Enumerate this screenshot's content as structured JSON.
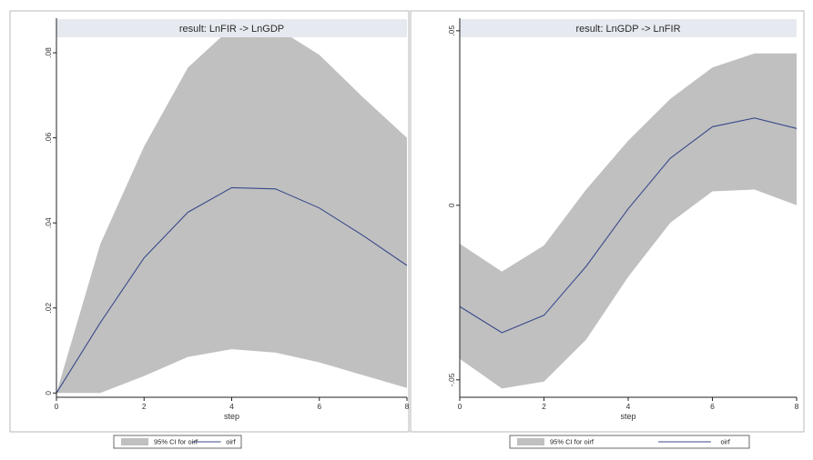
{
  "chart_data": [
    {
      "type": "area",
      "title": "result: LnFIR -> LnGDP",
      "xlabel": "step",
      "ylabel": "",
      "x": [
        0,
        1,
        2,
        3,
        4,
        5,
        6,
        7,
        8
      ],
      "xticks": [
        "0",
        "2",
        "4",
        "6",
        "8"
      ],
      "xlim": [
        0,
        8
      ],
      "yticks": [
        "0",
        ".02",
        ".04",
        ".06",
        ".08"
      ],
      "ylim": [
        -0.001,
        0.086
      ],
      "series": [
        {
          "role": "ci_lower",
          "values": [
            0,
            0,
            0.004,
            0.0085,
            0.0103,
            0.0095,
            0.0072,
            0.0042,
            0.0012
          ]
        },
        {
          "role": "ci_upper",
          "values": [
            0,
            0.035,
            0.058,
            0.0765,
            0.086,
            0.086,
            0.0795,
            0.0695,
            0.06
          ]
        },
        {
          "name": "orf",
          "values": [
            0,
            0.0165,
            0.0318,
            0.0425,
            0.0483,
            0.048,
            0.0435,
            0.037,
            0.03
          ]
        }
      ],
      "legend": {
        "ci_label": "95% CI for oirf",
        "line_label": "oirf",
        "position": "bottom"
      },
      "grid": false
    },
    {
      "type": "area",
      "title": "result: LnGDP -> LnFIR",
      "xlabel": "step",
      "ylabel": "",
      "x": [
        0,
        1,
        2,
        3,
        4,
        5,
        6,
        7,
        8
      ],
      "xticks": [
        "0",
        "2",
        "4",
        "6",
        "8"
      ],
      "xlim": [
        0,
        8
      ],
      "yticks": [
        "-.05",
        "0",
        ".05"
      ],
      "ylim": [
        -0.055,
        0.051
      ],
      "series": [
        {
          "role": "ci_lower",
          "values": [
            -0.044,
            -0.0525,
            -0.0505,
            -0.0385,
            -0.0205,
            -0.005,
            0.004,
            0.0045,
            0
          ]
        },
        {
          "role": "ci_upper",
          "values": [
            -0.011,
            -0.019,
            -0.0115,
            0.0045,
            0.0185,
            0.0305,
            0.0395,
            0.0435,
            0.0435
          ]
        },
        {
          "name": "orf",
          "values": [
            -0.029,
            -0.0365,
            -0.0315,
            -0.0175,
            -0.001,
            0.0135,
            0.0225,
            0.025,
            0.022
          ]
        }
      ],
      "legend": {
        "ci_label": "95% CI for oirf",
        "line_label": "oirf",
        "position": "bottom"
      },
      "grid": false
    }
  ]
}
